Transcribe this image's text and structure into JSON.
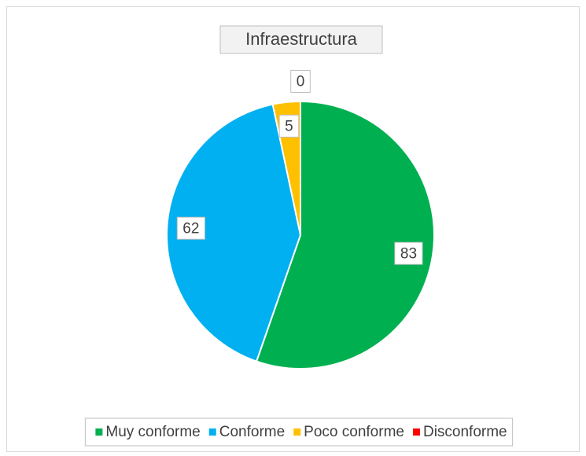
{
  "chart_data": {
    "type": "pie",
    "title": "Infraestructura",
    "categories": [
      "Muy conforme",
      "Conforme",
      "Poco conforme",
      "Disconforme"
    ],
    "values": [
      83,
      62,
      5,
      0
    ],
    "colors": [
      "#00b050",
      "#00b0f0",
      "#ffc000",
      "#ff0000"
    ],
    "legend": "bottom"
  }
}
